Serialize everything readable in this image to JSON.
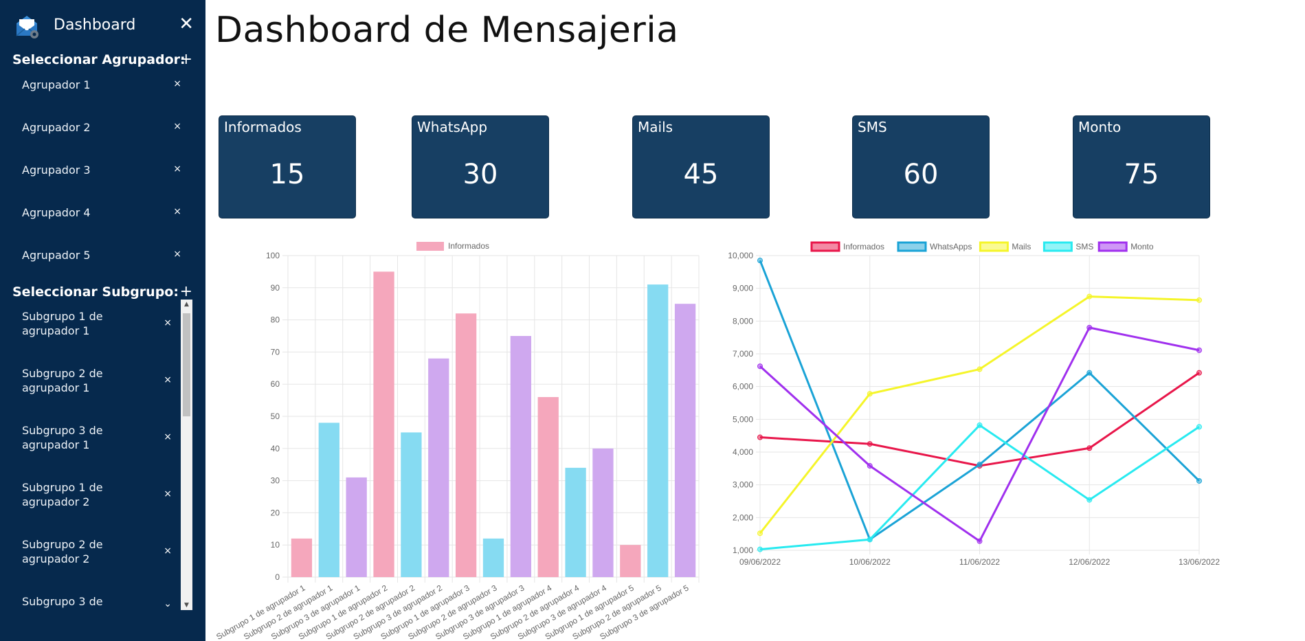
{
  "sidebar": {
    "title": "Dashboard",
    "logo_icon": "envelope-gear-icon",
    "close_icon": "close-icon",
    "agrupador_heading": "Seleccionar Agrupador:",
    "subgrupo_heading": "Seleccionar Subgrupo:",
    "add_symbol": "+",
    "remove_symbol": "×",
    "agrupadores": [
      {
        "label": "Agrupador 1"
      },
      {
        "label": "Agrupador 2"
      },
      {
        "label": "Agrupador 3"
      },
      {
        "label": "Agrupador 4"
      },
      {
        "label": "Agrupador 5"
      }
    ],
    "subgrupos": [
      {
        "line1": "Subgrupo 1 de",
        "line2": "agrupador 1"
      },
      {
        "line1": "Subgrupo 2 de",
        "line2": "agrupador 1"
      },
      {
        "line1": "Subgrupo 3 de",
        "line2": "agrupador 1"
      },
      {
        "line1": "Subgrupo 1 de",
        "line2": "agrupador 2"
      },
      {
        "line1": "Subgrupo 2 de",
        "line2": "agrupador 2"
      },
      {
        "line1": "Subgrupo 3 de",
        "line2": ""
      }
    ],
    "scroll_up": "▲",
    "scroll_down": "▼",
    "chevron_down": "⌄"
  },
  "main": {
    "title": "Dashboard de Mensajeria",
    "cards": [
      {
        "label": "Informados",
        "value": "15"
      },
      {
        "label": "WhatsApp",
        "value": "30"
      },
      {
        "label": "Mails",
        "value": "45"
      },
      {
        "label": "SMS",
        "value": "60"
      },
      {
        "label": "Monto",
        "value": "75"
      }
    ]
  },
  "chart_data": [
    {
      "type": "bar",
      "legend": [
        "Informados"
      ],
      "legend_position": "top",
      "categories": [
        "Subgrupo 1 de agrupador 1",
        "Subgrupo 2 de agrupador 1",
        "Subgrupo 3 de agrupador 1",
        "Subgrupo 1 de agrupador 2",
        "Subgrupo 2 de agrupador 2",
        "Subgrupo 3 de agrupador 2",
        "Subgrupo 1 de agrupador 3",
        "Subgrupo 2 de agrupador 3",
        "Subgrupo 3 de agrupador 3",
        "Subgrupo 1 de agrupador 4",
        "Subgrupo 2 de agrupador 4",
        "Subgrupo 3 de agrupador 4",
        "Subgrupo 1 de agrupador 5",
        "Subgrupo 2 de agrupador 5",
        "Subgrupo 3 de agrupador 5"
      ],
      "series": [
        {
          "name": "Informados",
          "values": [
            12,
            48,
            31,
            95,
            45,
            68,
            82,
            12,
            75,
            56,
            34,
            40,
            10,
            91,
            85
          ]
        }
      ],
      "bar_colors": [
        "#f5a7bc",
        "#86dbf2",
        "#cfa8ef"
      ],
      "ylim": [
        0,
        100
      ],
      "yticks": [
        0,
        10,
        20,
        30,
        40,
        50,
        60,
        70,
        80,
        90,
        100
      ],
      "grid": true
    },
    {
      "type": "line",
      "legend_position": "top",
      "x": [
        "09/06/2022",
        "10/06/2022",
        "11/06/2022",
        "12/06/2022",
        "13/06/2022"
      ],
      "series": [
        {
          "name": "Informados",
          "color": "#e8164a",
          "values": [
            4450,
            4250,
            3580,
            4120,
            6420
          ]
        },
        {
          "name": "WhatsApps",
          "color": "#1aa3d6",
          "values": [
            9850,
            1330,
            3620,
            6420,
            3120
          ]
        },
        {
          "name": "Mails",
          "color": "#f5f52a",
          "values": [
            1520,
            5780,
            6530,
            8750,
            8640
          ]
        },
        {
          "name": "SMS",
          "color": "#28eaf0",
          "values": [
            1030,
            1330,
            4820,
            2540,
            4770
          ]
        },
        {
          "name": "Monto",
          "color": "#a030ee",
          "values": [
            6620,
            3580,
            1280,
            7800,
            7110
          ]
        }
      ],
      "ylim": [
        1000,
        10000
      ],
      "yticks": [
        "1,000",
        "2,000",
        "3,000",
        "4,000",
        "5,000",
        "6,000",
        "7,000",
        "8,000",
        "9,000",
        "10,000"
      ],
      "grid": true
    }
  ]
}
